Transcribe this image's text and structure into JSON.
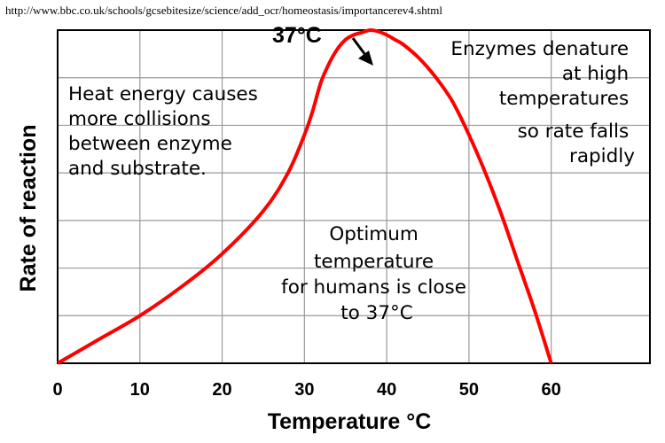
{
  "source_url": "http://www.bbc.co.uk/schools/gcsebitesize/science/add_ocr/homeostasis/importancerev4.shtml",
  "chart_data": {
    "type": "line",
    "xlabel": "Temperature °C",
    "ylabel": "Rate of reaction",
    "xlim": [
      0,
      72
    ],
    "ylim": [
      0,
      7
    ],
    "x_ticks": [
      "0",
      "10",
      "20",
      "30",
      "40",
      "50",
      "60"
    ],
    "x_tick_values": [
      0,
      10,
      20,
      30,
      40,
      50,
      60
    ],
    "y_ticks_labeled": false,
    "grid": true,
    "line_color": "#ff0000",
    "series": [
      {
        "x": [
          0,
          5,
          10,
          15,
          20,
          25,
          28,
          30,
          31,
          32,
          33,
          34,
          35,
          36,
          37,
          38,
          39,
          40,
          41,
          42,
          44,
          46,
          48,
          50,
          52,
          54,
          56,
          58,
          60
        ],
        "values": [
          0,
          0.5,
          1.0,
          1.6,
          2.3,
          3.2,
          4.0,
          4.8,
          5.3,
          5.9,
          6.3,
          6.6,
          6.8,
          6.9,
          6.95,
          7.0,
          6.97,
          6.9,
          6.8,
          6.7,
          6.4,
          6.0,
          5.5,
          4.8,
          4.0,
          3.1,
          2.1,
          1.1,
          0
        ]
      }
    ],
    "peak_label": "37°C",
    "annotations": {
      "left": [
        "Heat energy causes",
        "more collisions",
        "between enzyme",
        "and substrate."
      ],
      "right": [
        "Enzymes denature",
        "at high",
        "temperatures",
        "so rate falls",
        "rapidly"
      ],
      "middle": [
        "Optimum",
        "temperature",
        "for humans is close",
        "to 37°C"
      ]
    }
  }
}
